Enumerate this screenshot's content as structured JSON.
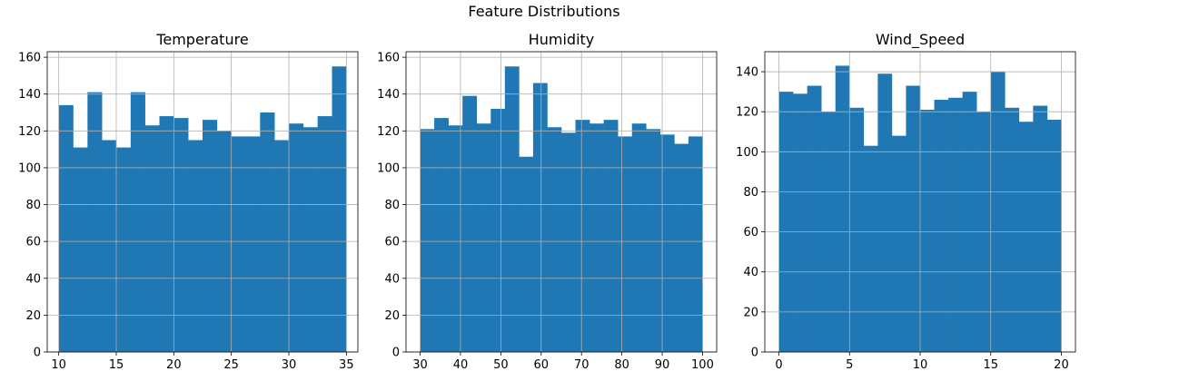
{
  "figure_title": "Feature Distributions",
  "colors": {
    "bar": "#1f77b4",
    "grid": "#b0b0b0",
    "frame": "#000000"
  },
  "chart_data": [
    {
      "type": "bar",
      "title": "Temperature",
      "xlabel": "",
      "ylabel": "",
      "bins": {
        "start": 10,
        "end": 35,
        "count": 20
      },
      "values": [
        134,
        111,
        141,
        115,
        111,
        141,
        123,
        128,
        127,
        115,
        126,
        120,
        117,
        117,
        130,
        115,
        124,
        122,
        128,
        155
      ],
      "xlim": [
        9,
        36
      ],
      "ylim": [
        0,
        163
      ],
      "xticks": [
        10,
        15,
        20,
        25,
        30,
        35
      ],
      "yticks": [
        0,
        20,
        40,
        60,
        80,
        100,
        120,
        140,
        160
      ],
      "grid": true
    },
    {
      "type": "bar",
      "title": "Humidity",
      "xlabel": "",
      "ylabel": "",
      "bins": {
        "start": 30,
        "end": 100,
        "count": 20
      },
      "values": [
        121,
        127,
        123,
        139,
        124,
        132,
        155,
        106,
        146,
        122,
        119,
        126,
        124,
        126,
        117,
        124,
        121,
        118,
        113,
        117
      ],
      "xlim": [
        26.5,
        103.5
      ],
      "ylim": [
        0,
        163
      ],
      "xticks": [
        30,
        40,
        50,
        60,
        70,
        80,
        90,
        100
      ],
      "yticks": [
        0,
        20,
        40,
        60,
        80,
        100,
        120,
        140,
        160
      ],
      "grid": true
    },
    {
      "type": "bar",
      "title": "Wind_Speed",
      "xlabel": "",
      "ylabel": "",
      "bins": {
        "start": 0,
        "end": 20,
        "count": 20
      },
      "values": [
        130,
        129,
        133,
        120,
        143,
        122,
        103,
        139,
        108,
        133,
        121,
        126,
        127,
        130,
        120,
        140,
        122,
        115,
        123,
        116
      ],
      "xlim": [
        -1,
        21
      ],
      "ylim": [
        0,
        150
      ],
      "xticks": [
        0,
        5,
        10,
        15,
        20
      ],
      "yticks": [
        0,
        20,
        40,
        60,
        80,
        100,
        120,
        140
      ],
      "grid": true
    }
  ]
}
